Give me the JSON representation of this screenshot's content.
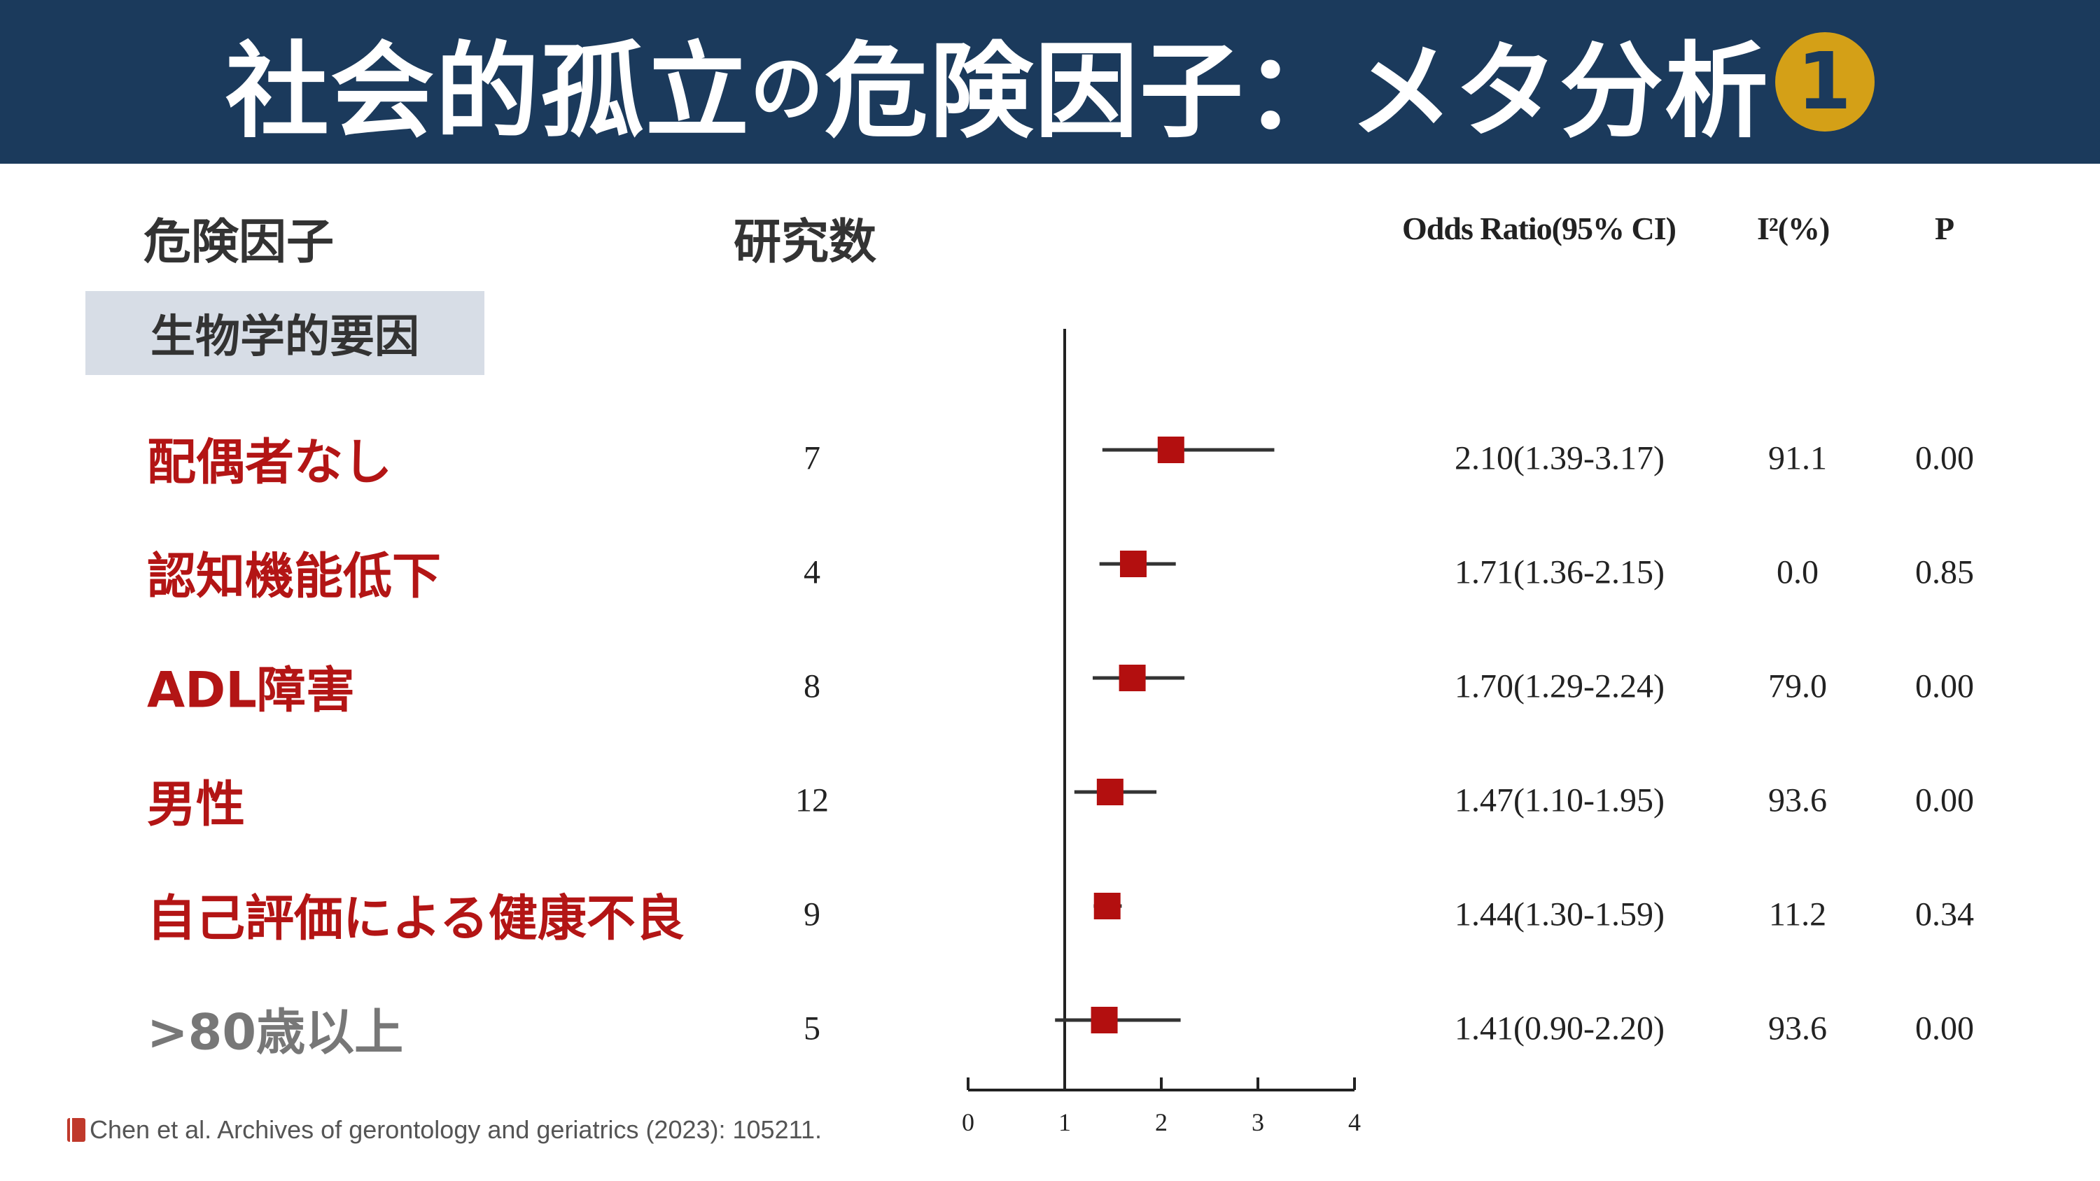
{
  "title": {
    "main": "社会的孤立",
    "particle": "の",
    "rest": "危険因子：メタ分析",
    "badge": "1"
  },
  "headers": {
    "factor": "危険因子",
    "studies": "研究数",
    "odds_ratio": "Odds Ratio(95% CI)",
    "i2": "I²(%)",
    "p": "P"
  },
  "category": "生物学的要因",
  "colors": {
    "title_bar": "#1b3a5c",
    "badge": "#d4a017",
    "highlight_label": "#b31515",
    "muted_label": "#777777",
    "marker": "#b30f0f"
  },
  "rows": [
    {
      "label": "配偶者なし",
      "studies": "7",
      "or_text": "2.10(1.39-3.17)",
      "i2": "91.1",
      "p": "0.00",
      "highlight": true
    },
    {
      "label": "認知機能低下",
      "studies": "4",
      "or_text": "1.71(1.36-2.15)",
      "i2": "0.0",
      "p": "0.85",
      "highlight": true
    },
    {
      "label": "ADL障害",
      "studies": "8",
      "or_text": "1.70(1.29-2.24)",
      "i2": "79.0",
      "p": "0.00",
      "highlight": true
    },
    {
      "label": "男性",
      "studies": "12",
      "or_text": "1.47(1.10-1.95)",
      "i2": "93.6",
      "p": "0.00",
      "highlight": true
    },
    {
      "label": "自己評価による健康不良",
      "studies": "9",
      "or_text": "1.44(1.30-1.59)",
      "i2": "11.2",
      "p": "0.34",
      "highlight": true
    },
    {
      "label": ">80歳以上",
      "studies": "5",
      "or_text": "1.41(0.90-2.20)",
      "i2": "93.6",
      "p": "0.00",
      "highlight": false
    }
  ],
  "chart_data": {
    "type": "forest",
    "reference_line": 1,
    "xlim": [
      0,
      4
    ],
    "x_ticks": [
      "0",
      "1",
      "2",
      "3",
      "4"
    ],
    "series": [
      {
        "category": "配偶者なし",
        "or": 2.1,
        "lower": 1.39,
        "upper": 3.17
      },
      {
        "category": "認知機能低下",
        "or": 1.71,
        "lower": 1.36,
        "upper": 2.15
      },
      {
        "category": "ADL障害",
        "or": 1.7,
        "lower": 1.29,
        "upper": 2.24
      },
      {
        "category": "男性",
        "or": 1.47,
        "lower": 1.1,
        "upper": 1.95
      },
      {
        "category": "自己評価による健康不良",
        "or": 1.44,
        "lower": 1.3,
        "upper": 1.59
      },
      {
        "category": ">80歳以上",
        "or": 1.41,
        "lower": 0.9,
        "upper": 2.2
      }
    ]
  },
  "citation": "Chen et al. Archives of gerontology and geriatrics (2023): 105211."
}
